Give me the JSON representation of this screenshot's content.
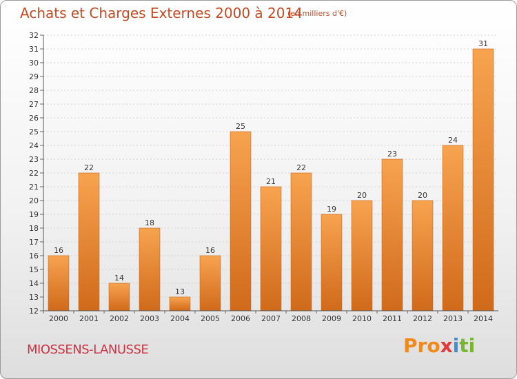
{
  "header": {
    "title": "Achats et Charges Externes 2000 à 2014",
    "subtitle": "(en milliers d'€)"
  },
  "footer": {
    "location": "MIOSSENS-LANUSSE",
    "logo_text": "Proxiti"
  },
  "colors": {
    "bar_light": "#f7a34f",
    "bar_dark": "#d06a1b",
    "title": "#c44a22",
    "location": "#cc3344"
  },
  "chart_data": {
    "type": "bar",
    "title": "Achats et Charges Externes 2000 à 2014",
    "subtitle": "(en milliers d'€)",
    "categories": [
      "2000",
      "2001",
      "2002",
      "2003",
      "2004",
      "2005",
      "2006",
      "2007",
      "2008",
      "2009",
      "2010",
      "2011",
      "2012",
      "2013",
      "2014"
    ],
    "values": [
      16,
      22,
      14,
      18,
      13,
      16,
      25,
      21,
      22,
      19,
      20,
      23,
      20,
      24,
      31
    ],
    "ylim": [
      12,
      32
    ],
    "yticks": [
      12,
      13,
      14,
      15,
      16,
      17,
      18,
      19,
      20,
      21,
      22,
      23,
      24,
      25,
      26,
      27,
      28,
      29,
      30,
      31,
      32
    ],
    "grid": true,
    "data_labels": true
  }
}
